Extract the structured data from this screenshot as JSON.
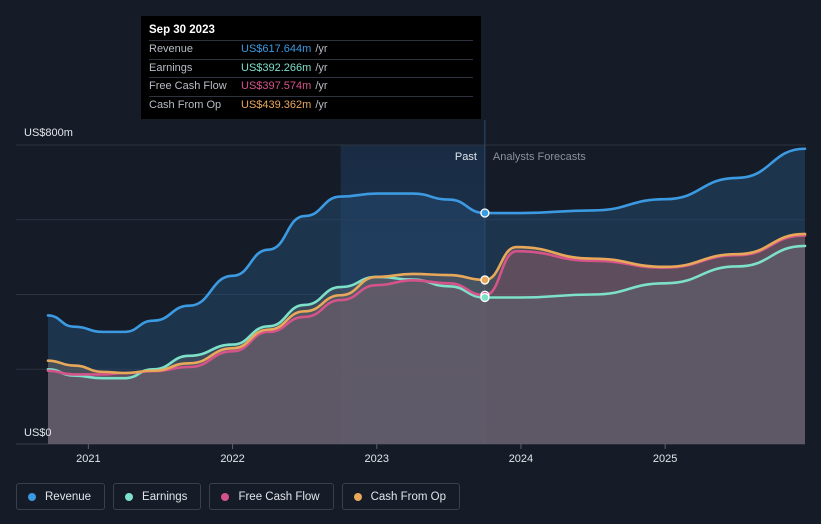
{
  "tooltip": {
    "date": "Sep 30 2023",
    "rows": [
      {
        "label": "Revenue",
        "value": "US$617.644m",
        "unit": "/yr",
        "color": "#3b9ae1"
      },
      {
        "label": "Earnings",
        "value": "US$392.266m",
        "unit": "/yr",
        "color": "#7de0c8"
      },
      {
        "label": "Free Cash Flow",
        "value": "US$397.574m",
        "unit": "/yr",
        "color": "#d4548a"
      },
      {
        "label": "Cash From Op",
        "value": "US$439.362m",
        "unit": "/yr",
        "color": "#e8a85a"
      }
    ]
  },
  "chart_data": {
    "type": "line",
    "y_axis_labels": [
      "US$800m",
      "US$0"
    ],
    "ylim": [
      0,
      800
    ],
    "xlim": [
      2020.72,
      2025.97
    ],
    "x_tick_labels": [
      "2021",
      "2022",
      "2023",
      "2024",
      "2025"
    ],
    "x_ticks": [
      2021,
      2022,
      2023,
      2024,
      2025
    ],
    "divider_x": 2023.75,
    "past_label": "Past",
    "forecast_label": "Analysts Forecasts",
    "grid": true,
    "legend_position": "bottom-left",
    "series": [
      {
        "name": "Revenue",
        "color": "#3b9ae1",
        "points": [
          [
            2020.72,
            344
          ],
          [
            2020.9,
            314
          ],
          [
            2021.1,
            300
          ],
          [
            2021.25,
            300
          ],
          [
            2021.45,
            330
          ],
          [
            2021.7,
            370
          ],
          [
            2022.0,
            450
          ],
          [
            2022.25,
            520
          ],
          [
            2022.5,
            610
          ],
          [
            2022.75,
            662
          ],
          [
            2023.0,
            670
          ],
          [
            2023.25,
            670
          ],
          [
            2023.5,
            654
          ],
          [
            2023.75,
            618
          ],
          [
            2024.0,
            618
          ],
          [
            2024.5,
            625
          ],
          [
            2025.0,
            655
          ],
          [
            2025.5,
            712
          ],
          [
            2025.97,
            790
          ]
        ]
      },
      {
        "name": "Earnings",
        "color": "#7de0c8",
        "points": [
          [
            2020.72,
            200
          ],
          [
            2020.9,
            183
          ],
          [
            2021.1,
            176
          ],
          [
            2021.25,
            176
          ],
          [
            2021.45,
            200
          ],
          [
            2021.7,
            236
          ],
          [
            2022.0,
            266
          ],
          [
            2022.25,
            315
          ],
          [
            2022.5,
            372
          ],
          [
            2022.75,
            420
          ],
          [
            2023.0,
            447
          ],
          [
            2023.25,
            440
          ],
          [
            2023.5,
            422
          ],
          [
            2023.75,
            392
          ],
          [
            2024.0,
            392
          ],
          [
            2024.5,
            400
          ],
          [
            2025.0,
            430
          ],
          [
            2025.5,
            475
          ],
          [
            2025.97,
            530
          ]
        ]
      },
      {
        "name": "Free Cash Flow",
        "color": "#d4548a",
        "points": [
          [
            2020.72,
            196
          ],
          [
            2020.9,
            186
          ],
          [
            2021.1,
            186
          ],
          [
            2021.25,
            190
          ],
          [
            2021.45,
            195
          ],
          [
            2021.7,
            206
          ],
          [
            2022.0,
            248
          ],
          [
            2022.25,
            300
          ],
          [
            2022.5,
            340
          ],
          [
            2022.75,
            385
          ],
          [
            2023.0,
            425
          ],
          [
            2023.25,
            438
          ],
          [
            2023.5,
            430
          ],
          [
            2023.75,
            398
          ],
          [
            2023.97,
            516
          ],
          [
            2024.5,
            490
          ],
          [
            2025.0,
            472
          ],
          [
            2025.5,
            505
          ],
          [
            2025.97,
            558
          ]
        ]
      },
      {
        "name": "Cash From Op",
        "color": "#e8a85a",
        "points": [
          [
            2020.72,
            223
          ],
          [
            2020.9,
            210
          ],
          [
            2021.1,
            193
          ],
          [
            2021.25,
            190
          ],
          [
            2021.45,
            196
          ],
          [
            2021.7,
            216
          ],
          [
            2022.0,
            256
          ],
          [
            2022.25,
            306
          ],
          [
            2022.5,
            355
          ],
          [
            2022.75,
            398
          ],
          [
            2023.0,
            447
          ],
          [
            2023.25,
            455
          ],
          [
            2023.5,
            452
          ],
          [
            2023.75,
            439
          ],
          [
            2023.97,
            527
          ],
          [
            2024.5,
            496
          ],
          [
            2025.0,
            474
          ],
          [
            2025.5,
            508
          ],
          [
            2025.97,
            562
          ]
        ]
      }
    ],
    "highlight_points": [
      {
        "series": "Revenue",
        "x": 2023.75,
        "y": 618
      },
      {
        "series": "Cash From Op",
        "x": 2023.75,
        "y": 439
      },
      {
        "series": "Free Cash Flow",
        "x": 2023.75,
        "y": 398
      },
      {
        "series": "Earnings",
        "x": 2023.75,
        "y": 392
      }
    ]
  },
  "legend": [
    {
      "label": "Revenue",
      "color": "#3b9ae1"
    },
    {
      "label": "Earnings",
      "color": "#7de0c8"
    },
    {
      "label": "Free Cash Flow",
      "color": "#d4548a"
    },
    {
      "label": "Cash From Op",
      "color": "#e8a85a"
    }
  ]
}
